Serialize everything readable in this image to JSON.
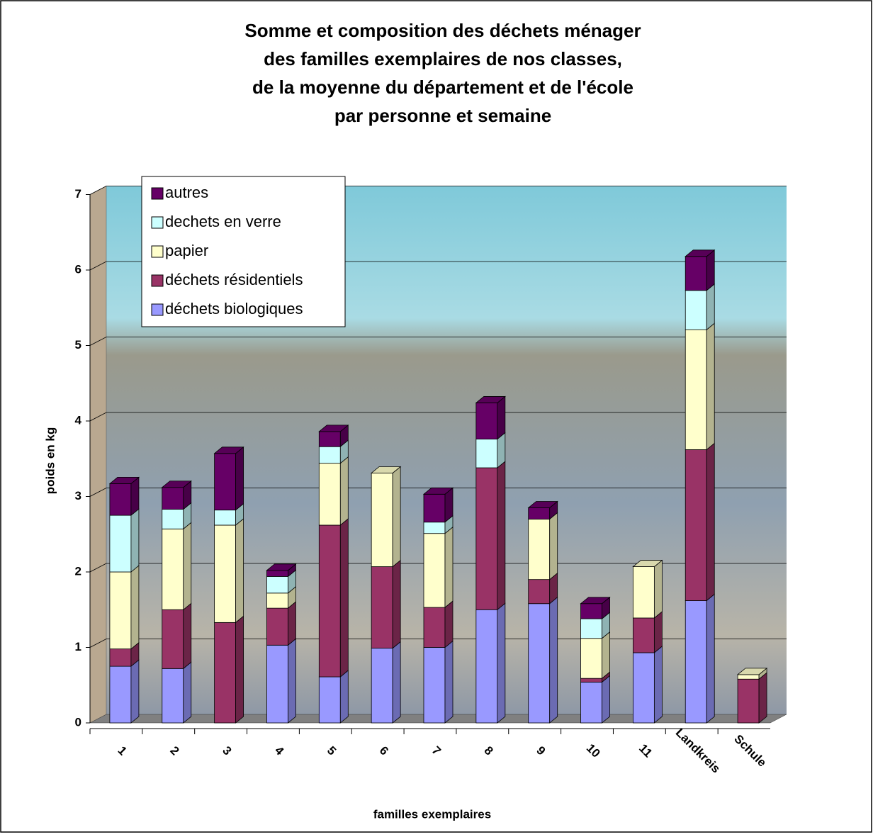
{
  "chart_data": {
    "type": "bar3d_stacked",
    "title": [
      "Somme et composition des déchets ménager",
      "des familles exemplaires de nos classes,",
      "de la moyenne du département et de l'école",
      "par personne et semaine"
    ],
    "x_label": "familles exemplaires",
    "y_label": "poids en kg",
    "categories": [
      "1",
      "2",
      "3",
      "4",
      "5",
      "6",
      "7",
      "8",
      "9",
      "10",
      "11",
      "Landkreis",
      "Schule"
    ],
    "series": [
      {
        "name": "déchets biologiques",
        "color": "#9999ff",
        "values": [
          0.75,
          0.72,
          0,
          1.03,
          0.61,
          0.99,
          1.0,
          1.5,
          1.58,
          0.54,
          0.93,
          1.62,
          0
        ]
      },
      {
        "name": "déchets résidentiels",
        "color": "#993366",
        "values": [
          0.23,
          0.78,
          1.33,
          0.49,
          2.01,
          1.08,
          0.53,
          1.88,
          0.32,
          0.05,
          0.46,
          2.0,
          0.58
        ]
      },
      {
        "name": "papier",
        "color": "#ffffcc",
        "values": [
          1.02,
          1.07,
          1.29,
          0.2,
          0.82,
          1.24,
          0.98,
          0,
          0.8,
          0.53,
          0.68,
          1.59,
          0.06
        ]
      },
      {
        "name": "dechets en verre",
        "color": "#ccffff",
        "values": [
          0.75,
          0.26,
          0.2,
          0.22,
          0.22,
          0,
          0.15,
          0.38,
          0,
          0.26,
          0,
          0.52,
          0
        ]
      },
      {
        "name": "autres",
        "color": "#660066",
        "values": [
          0.42,
          0.29,
          0.75,
          0.08,
          0.2,
          0,
          0.37,
          0.48,
          0.15,
          0.2,
          0,
          0.45,
          0
        ]
      }
    ],
    "ylim": [
      0,
      7
    ],
    "yticks": [
      0,
      1,
      2,
      3,
      4,
      5,
      6,
      7
    ],
    "grid": true,
    "legend": "top-left"
  }
}
